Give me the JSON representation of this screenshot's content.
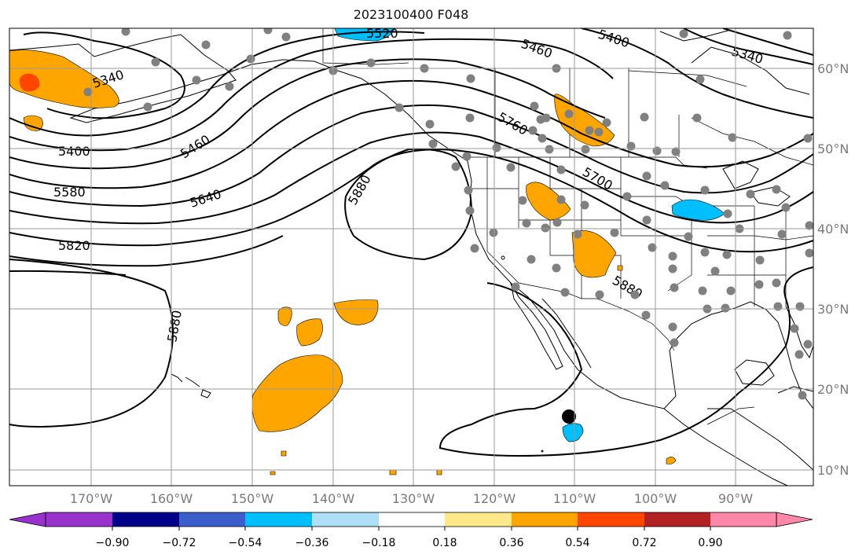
{
  "title": "2023100400 F048",
  "map": {
    "lon_labels": [
      "170°W",
      "160°W",
      "150°W",
      "140°W",
      "130°W",
      "120°W",
      "110°W",
      "100°W",
      "90°W"
    ],
    "lat_labels": [
      "60°N",
      "50°N",
      "40°N",
      "30°N",
      "20°N",
      "10°N"
    ],
    "contour_labels": [
      "5520",
      "5460",
      "5400",
      "5340",
      "5340",
      "5400",
      "5460",
      "5580",
      "5640",
      "5820",
      "5880",
      "5760",
      "5700",
      "5880",
      "5880"
    ],
    "colors": {
      "orange": "#FFA500",
      "dark_orange": "#FF4500",
      "light_blue": "#00BFFF",
      "contour": "#000000",
      "grid": "#9a9a9a",
      "station_dot": "#808080"
    }
  },
  "colorbar": {
    "tick_labels": [
      "−0.90",
      "−0.72",
      "−0.54",
      "−0.36",
      "−0.18",
      "0.18",
      "0.36",
      "0.54",
      "0.72",
      "0.90"
    ],
    "colors": [
      "#9932CC",
      "#00008B",
      "#3A5FCD",
      "#00BFFF",
      "#ADDFF7",
      "#FFFFFF",
      "#FFE88A",
      "#FFA500",
      "#FF4500",
      "#B22222",
      "#FF88AA"
    ]
  }
}
